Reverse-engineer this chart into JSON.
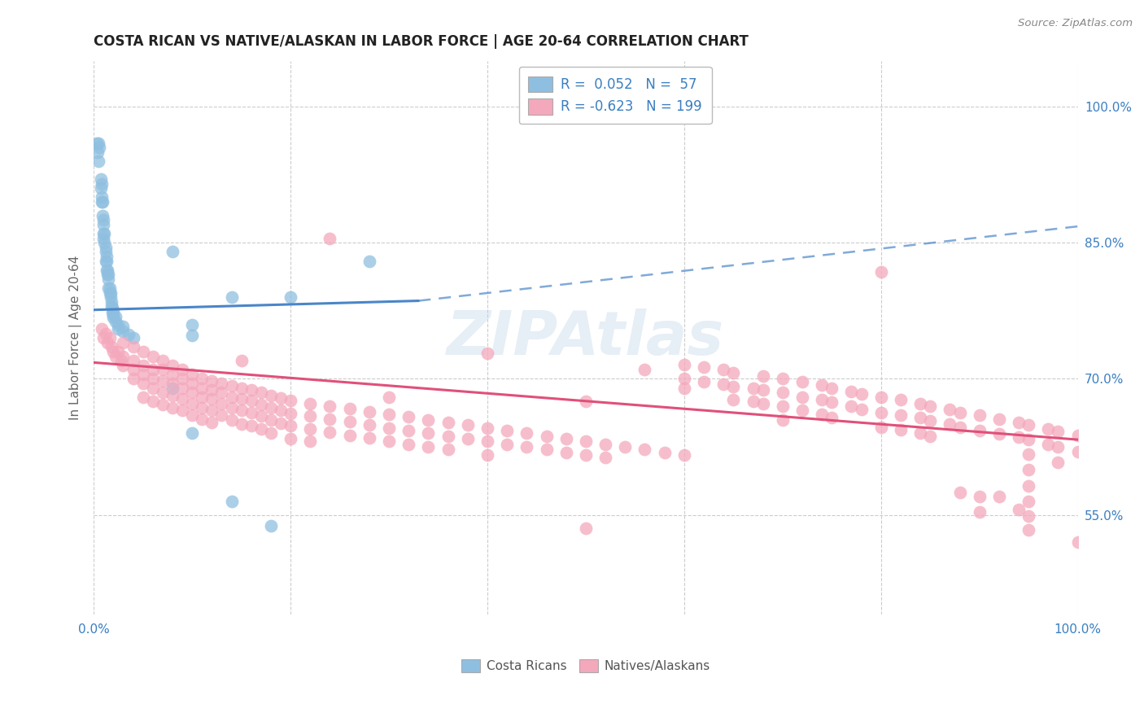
{
  "title": "COSTA RICAN VS NATIVE/ALASKAN IN LABOR FORCE | AGE 20-64 CORRELATION CHART",
  "source": "Source: ZipAtlas.com",
  "ylabel": "In Labor Force | Age 20-64",
  "xlim": [
    0.0,
    1.0
  ],
  "ylim": [
    0.44,
    1.05
  ],
  "y_tick_vals_right": [
    0.55,
    0.7,
    0.85,
    1.0
  ],
  "y_tick_labels_right": [
    "55.0%",
    "70.0%",
    "85.0%",
    "100.0%"
  ],
  "costa_rican_R": "0.052",
  "costa_rican_N": "57",
  "native_R": "-0.623",
  "native_N": "199",
  "blue_color": "#8fbfe0",
  "pink_color": "#f4a8bc",
  "blue_line_color": "#4a86c8",
  "pink_line_color": "#e0507a",
  "blue_line_solid": [
    [
      0.0,
      0.776
    ],
    [
      0.33,
      0.786
    ]
  ],
  "blue_line_dashed": [
    [
      0.33,
      0.786
    ],
    [
      1.0,
      0.868
    ]
  ],
  "pink_line": [
    [
      0.0,
      0.718
    ],
    [
      1.0,
      0.633
    ]
  ],
  "blue_scatter": [
    [
      0.003,
      0.96
    ],
    [
      0.004,
      0.95
    ],
    [
      0.005,
      0.94
    ],
    [
      0.005,
      0.96
    ],
    [
      0.006,
      0.955
    ],
    [
      0.007,
      0.92
    ],
    [
      0.007,
      0.91
    ],
    [
      0.008,
      0.9
    ],
    [
      0.008,
      0.895
    ],
    [
      0.008,
      0.915
    ],
    [
      0.009,
      0.88
    ],
    [
      0.009,
      0.895
    ],
    [
      0.01,
      0.87
    ],
    [
      0.01,
      0.86
    ],
    [
      0.01,
      0.855
    ],
    [
      0.01,
      0.875
    ],
    [
      0.011,
      0.86
    ],
    [
      0.011,
      0.85
    ],
    [
      0.012,
      0.84
    ],
    [
      0.012,
      0.845
    ],
    [
      0.012,
      0.83
    ],
    [
      0.013,
      0.83
    ],
    [
      0.013,
      0.82
    ],
    [
      0.013,
      0.835
    ],
    [
      0.014,
      0.82
    ],
    [
      0.014,
      0.815
    ],
    [
      0.015,
      0.81
    ],
    [
      0.015,
      0.8
    ],
    [
      0.015,
      0.815
    ],
    [
      0.016,
      0.8
    ],
    [
      0.016,
      0.795
    ],
    [
      0.017,
      0.79
    ],
    [
      0.017,
      0.795
    ],
    [
      0.018,
      0.785
    ],
    [
      0.018,
      0.78
    ],
    [
      0.019,
      0.778
    ],
    [
      0.019,
      0.773
    ],
    [
      0.02,
      0.775
    ],
    [
      0.02,
      0.77
    ],
    [
      0.02,
      0.768
    ],
    [
      0.022,
      0.769
    ],
    [
      0.022,
      0.763
    ],
    [
      0.025,
      0.76
    ],
    [
      0.025,
      0.755
    ],
    [
      0.03,
      0.758
    ],
    [
      0.03,
      0.752
    ],
    [
      0.035,
      0.749
    ],
    [
      0.04,
      0.745
    ],
    [
      0.08,
      0.84
    ],
    [
      0.1,
      0.76
    ],
    [
      0.1,
      0.748
    ],
    [
      0.14,
      0.79
    ],
    [
      0.2,
      0.79
    ],
    [
      0.28,
      0.83
    ],
    [
      0.08,
      0.69
    ],
    [
      0.1,
      0.64
    ],
    [
      0.14,
      0.565
    ],
    [
      0.18,
      0.538
    ]
  ],
  "pink_scatter": [
    [
      0.008,
      0.755
    ],
    [
      0.01,
      0.745
    ],
    [
      0.012,
      0.75
    ],
    [
      0.014,
      0.74
    ],
    [
      0.016,
      0.745
    ],
    [
      0.018,
      0.735
    ],
    [
      0.02,
      0.73
    ],
    [
      0.022,
      0.725
    ],
    [
      0.025,
      0.73
    ],
    [
      0.028,
      0.72
    ],
    [
      0.03,
      0.74
    ],
    [
      0.03,
      0.725
    ],
    [
      0.03,
      0.715
    ],
    [
      0.04,
      0.735
    ],
    [
      0.04,
      0.72
    ],
    [
      0.04,
      0.71
    ],
    [
      0.04,
      0.7
    ],
    [
      0.05,
      0.73
    ],
    [
      0.05,
      0.715
    ],
    [
      0.05,
      0.705
    ],
    [
      0.05,
      0.695
    ],
    [
      0.05,
      0.68
    ],
    [
      0.06,
      0.725
    ],
    [
      0.06,
      0.71
    ],
    [
      0.06,
      0.7
    ],
    [
      0.06,
      0.69
    ],
    [
      0.06,
      0.675
    ],
    [
      0.07,
      0.72
    ],
    [
      0.07,
      0.71
    ],
    [
      0.07,
      0.698
    ],
    [
      0.07,
      0.685
    ],
    [
      0.07,
      0.672
    ],
    [
      0.08,
      0.715
    ],
    [
      0.08,
      0.705
    ],
    [
      0.08,
      0.695
    ],
    [
      0.08,
      0.682
    ],
    [
      0.08,
      0.668
    ],
    [
      0.09,
      0.71
    ],
    [
      0.09,
      0.7
    ],
    [
      0.09,
      0.69
    ],
    [
      0.09,
      0.678
    ],
    [
      0.09,
      0.665
    ],
    [
      0.1,
      0.705
    ],
    [
      0.1,
      0.695
    ],
    [
      0.1,
      0.685
    ],
    [
      0.1,
      0.673
    ],
    [
      0.1,
      0.66
    ],
    [
      0.11,
      0.7
    ],
    [
      0.11,
      0.69
    ],
    [
      0.11,
      0.68
    ],
    [
      0.11,
      0.668
    ],
    [
      0.11,
      0.656
    ],
    [
      0.12,
      0.698
    ],
    [
      0.12,
      0.688
    ],
    [
      0.12,
      0.678
    ],
    [
      0.12,
      0.665
    ],
    [
      0.12,
      0.652
    ],
    [
      0.13,
      0.695
    ],
    [
      0.13,
      0.685
    ],
    [
      0.13,
      0.673
    ],
    [
      0.13,
      0.66
    ],
    [
      0.14,
      0.692
    ],
    [
      0.14,
      0.68
    ],
    [
      0.14,
      0.668
    ],
    [
      0.14,
      0.655
    ],
    [
      0.15,
      0.72
    ],
    [
      0.15,
      0.69
    ],
    [
      0.15,
      0.678
    ],
    [
      0.15,
      0.665
    ],
    [
      0.15,
      0.65
    ],
    [
      0.16,
      0.688
    ],
    [
      0.16,
      0.676
    ],
    [
      0.16,
      0.663
    ],
    [
      0.16,
      0.648
    ],
    [
      0.17,
      0.685
    ],
    [
      0.17,
      0.672
    ],
    [
      0.17,
      0.659
    ],
    [
      0.17,
      0.645
    ],
    [
      0.18,
      0.682
    ],
    [
      0.18,
      0.668
    ],
    [
      0.18,
      0.655
    ],
    [
      0.18,
      0.64
    ],
    [
      0.19,
      0.679
    ],
    [
      0.19,
      0.665
    ],
    [
      0.19,
      0.651
    ],
    [
      0.2,
      0.676
    ],
    [
      0.2,
      0.662
    ],
    [
      0.2,
      0.648
    ],
    [
      0.2,
      0.634
    ],
    [
      0.22,
      0.673
    ],
    [
      0.22,
      0.659
    ],
    [
      0.22,
      0.645
    ],
    [
      0.22,
      0.631
    ],
    [
      0.24,
      0.67
    ],
    [
      0.24,
      0.855
    ],
    [
      0.24,
      0.656
    ],
    [
      0.24,
      0.641
    ],
    [
      0.26,
      0.667
    ],
    [
      0.26,
      0.653
    ],
    [
      0.26,
      0.638
    ],
    [
      0.28,
      0.664
    ],
    [
      0.28,
      0.649
    ],
    [
      0.28,
      0.635
    ],
    [
      0.3,
      0.68
    ],
    [
      0.3,
      0.661
    ],
    [
      0.3,
      0.646
    ],
    [
      0.3,
      0.631
    ],
    [
      0.32,
      0.658
    ],
    [
      0.32,
      0.643
    ],
    [
      0.32,
      0.628
    ],
    [
      0.34,
      0.655
    ],
    [
      0.34,
      0.64
    ],
    [
      0.34,
      0.625
    ],
    [
      0.36,
      0.652
    ],
    [
      0.36,
      0.637
    ],
    [
      0.36,
      0.622
    ],
    [
      0.38,
      0.649
    ],
    [
      0.38,
      0.634
    ],
    [
      0.4,
      0.728
    ],
    [
      0.4,
      0.646
    ],
    [
      0.4,
      0.631
    ],
    [
      0.4,
      0.616
    ],
    [
      0.42,
      0.643
    ],
    [
      0.42,
      0.628
    ],
    [
      0.44,
      0.64
    ],
    [
      0.44,
      0.625
    ],
    [
      0.46,
      0.637
    ],
    [
      0.46,
      0.622
    ],
    [
      0.48,
      0.634
    ],
    [
      0.48,
      0.619
    ],
    [
      0.5,
      0.675
    ],
    [
      0.5,
      0.631
    ],
    [
      0.5,
      0.616
    ],
    [
      0.5,
      0.535
    ],
    [
      0.52,
      0.628
    ],
    [
      0.52,
      0.613
    ],
    [
      0.54,
      0.625
    ],
    [
      0.56,
      0.71
    ],
    [
      0.56,
      0.622
    ],
    [
      0.58,
      0.619
    ],
    [
      0.6,
      0.716
    ],
    [
      0.6,
      0.7
    ],
    [
      0.6,
      0.69
    ],
    [
      0.6,
      0.616
    ],
    [
      0.62,
      0.713
    ],
    [
      0.62,
      0.697
    ],
    [
      0.64,
      0.71
    ],
    [
      0.64,
      0.694
    ],
    [
      0.65,
      0.707
    ],
    [
      0.65,
      0.691
    ],
    [
      0.65,
      0.677
    ],
    [
      0.67,
      0.69
    ],
    [
      0.67,
      0.675
    ],
    [
      0.68,
      0.703
    ],
    [
      0.68,
      0.688
    ],
    [
      0.68,
      0.673
    ],
    [
      0.7,
      0.7
    ],
    [
      0.7,
      0.685
    ],
    [
      0.7,
      0.67
    ],
    [
      0.7,
      0.655
    ],
    [
      0.72,
      0.697
    ],
    [
      0.72,
      0.68
    ],
    [
      0.72,
      0.665
    ],
    [
      0.74,
      0.693
    ],
    [
      0.74,
      0.677
    ],
    [
      0.74,
      0.661
    ],
    [
      0.75,
      0.69
    ],
    [
      0.75,
      0.674
    ],
    [
      0.75,
      0.657
    ],
    [
      0.77,
      0.686
    ],
    [
      0.77,
      0.67
    ],
    [
      0.78,
      0.683
    ],
    [
      0.78,
      0.666
    ],
    [
      0.8,
      0.818
    ],
    [
      0.8,
      0.68
    ],
    [
      0.8,
      0.663
    ],
    [
      0.8,
      0.647
    ],
    [
      0.82,
      0.677
    ],
    [
      0.82,
      0.66
    ],
    [
      0.82,
      0.644
    ],
    [
      0.84,
      0.673
    ],
    [
      0.84,
      0.657
    ],
    [
      0.84,
      0.64
    ],
    [
      0.85,
      0.67
    ],
    [
      0.85,
      0.654
    ],
    [
      0.85,
      0.637
    ],
    [
      0.87,
      0.666
    ],
    [
      0.87,
      0.65
    ],
    [
      0.88,
      0.663
    ],
    [
      0.88,
      0.647
    ],
    [
      0.88,
      0.575
    ],
    [
      0.9,
      0.66
    ],
    [
      0.9,
      0.643
    ],
    [
      0.9,
      0.57
    ],
    [
      0.9,
      0.553
    ],
    [
      0.92,
      0.656
    ],
    [
      0.92,
      0.639
    ],
    [
      0.92,
      0.57
    ],
    [
      0.94,
      0.652
    ],
    [
      0.94,
      0.636
    ],
    [
      0.94,
      0.556
    ],
    [
      0.95,
      0.649
    ],
    [
      0.95,
      0.633
    ],
    [
      0.95,
      0.617
    ],
    [
      0.95,
      0.6
    ],
    [
      0.95,
      0.582
    ],
    [
      0.95,
      0.565
    ],
    [
      0.95,
      0.549
    ],
    [
      0.95,
      0.534
    ],
    [
      0.97,
      0.645
    ],
    [
      0.97,
      0.628
    ],
    [
      0.98,
      0.642
    ],
    [
      0.98,
      0.625
    ],
    [
      0.98,
      0.608
    ],
    [
      1.0,
      0.638
    ],
    [
      1.0,
      0.62
    ],
    [
      1.0,
      0.52
    ]
  ],
  "background_color": "#ffffff",
  "grid_color": "#cccccc",
  "watermark_text": "ZIPAtlas",
  "watermark_color": "#b8cfe8",
  "watermark_alpha": 0.35,
  "legend_text_color": "#3a7fc1",
  "tick_color": "#3a7fc1",
  "title_fontsize": 12,
  "tick_fontsize": 11,
  "ylabel_fontsize": 11
}
